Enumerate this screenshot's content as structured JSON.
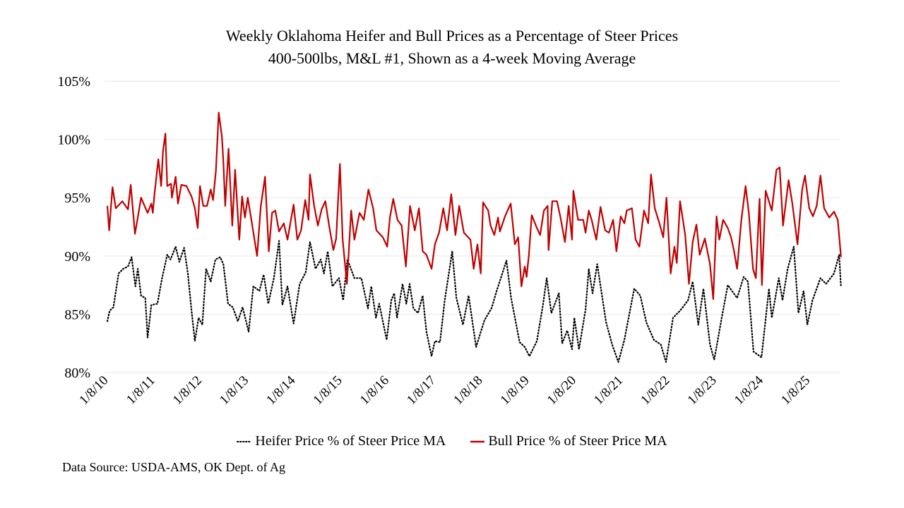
{
  "chart_data": {
    "type": "line",
    "title": "Weekly Oklahoma Heifer and Bull Prices as a Percentage of Steer Prices",
    "subtitle": "400-500lbs, M&L #1, Shown as a 4-week Moving Average",
    "xlabel": "",
    "ylabel": "",
    "ylim": [
      80,
      105
    ],
    "yticks": [
      "80%",
      "85%",
      "90%",
      "95%",
      "100%",
      "105%"
    ],
    "ytick_values": [
      80,
      85,
      90,
      95,
      100,
      105
    ],
    "xlim": [
      2010.0,
      2025.7
    ],
    "xticks": [
      "1/8/10",
      "1/8/11",
      "1/8/12",
      "1/8/13",
      "1/8/14",
      "1/8/15",
      "1/8/16",
      "1/8/17",
      "1/8/18",
      "1/8/19",
      "1/8/20",
      "1/8/21",
      "1/8/22",
      "1/8/23",
      "1/8/24",
      "1/8/25"
    ],
    "xtick_values": [
      2010.02,
      2011.02,
      2012.02,
      2013.02,
      2014.02,
      2015.02,
      2016.02,
      2017.02,
      2018.02,
      2019.02,
      2020.02,
      2021.02,
      2022.02,
      2023.02,
      2024.02,
      2025.02
    ],
    "grid": "horizontal",
    "legend_position": "bottom",
    "source": "Data Source: USDA-AMS, OK Dept. of Ag",
    "series": [
      {
        "name": "Heifer Price % of Steer Price MA",
        "color": "#000000",
        "style": "dotted",
        "x": [
          2010.02,
          2010.07,
          2010.15,
          2010.26,
          2010.36,
          2010.46,
          2010.54,
          2010.62,
          2010.67,
          2010.74,
          2010.83,
          2010.88,
          2010.96,
          2011.09,
          2011.19,
          2011.3,
          2011.37,
          2011.48,
          2011.56,
          2011.66,
          2011.74,
          2011.82,
          2011.89,
          2011.97,
          2012.05,
          2012.13,
          2012.23,
          2012.33,
          2012.43,
          2012.5,
          2012.6,
          2012.7,
          2012.81,
          2012.91,
          2013.04,
          2013.14,
          2013.27,
          2013.36,
          2013.46,
          2013.58,
          2013.69,
          2013.76,
          2013.87,
          2014.0,
          2014.13,
          2014.26,
          2014.35,
          2014.47,
          2014.58,
          2014.65,
          2014.73,
          2014.83,
          2014.97,
          2015.06,
          2015.15,
          2015.3,
          2015.45,
          2015.59,
          2015.66,
          2015.76,
          2015.83,
          2015.99,
          2016.09,
          2016.15,
          2016.21,
          2016.33,
          2016.41,
          2016.48,
          2016.56,
          2016.66,
          2016.76,
          2016.84,
          2016.95,
          2017.02,
          2017.13,
          2017.23,
          2017.39,
          2017.48,
          2017.62,
          2017.74,
          2017.9,
          2018.08,
          2018.23,
          2018.34,
          2018.55,
          2018.65,
          2018.83,
          2018.94,
          2019.04,
          2019.2,
          2019.33,
          2019.41,
          2019.51,
          2019.67,
          2019.74,
          2019.85,
          2019.95,
          2020.0,
          2020.1,
          2020.24,
          2020.31,
          2020.39,
          2020.49,
          2020.68,
          2020.81,
          2020.94,
          2021.07,
          2021.28,
          2021.41,
          2021.54,
          2021.7,
          2021.85,
          2021.96,
          2022.11,
          2022.26,
          2022.43,
          2022.53,
          2022.65,
          2022.76,
          2022.9,
          2022.99,
          2023.15,
          2023.28,
          2023.48,
          2023.62,
          2023.71,
          2023.83,
          2024.0,
          2024.16,
          2024.22,
          2024.37,
          2024.45,
          2024.56,
          2024.69,
          2024.79,
          2024.9,
          2024.98,
          2025.09,
          2025.26,
          2025.38,
          2025.55,
          2025.66,
          2025.7
        ],
        "values": [
          84.4,
          85.3,
          85.6,
          88.5,
          88.9,
          89.1,
          89.9,
          87.4,
          88.9,
          86.6,
          86.4,
          83.0,
          85.8,
          85.9,
          88.1,
          90.1,
          89.7,
          90.8,
          89.5,
          90.7,
          88.5,
          85.3,
          82.7,
          84.7,
          84.1,
          88.9,
          87.8,
          89.7,
          89.9,
          89.3,
          85.9,
          85.6,
          84.4,
          85.6,
          83.5,
          87.4,
          87.0,
          88.4,
          85.9,
          88.1,
          91.3,
          85.8,
          87.4,
          84.2,
          87.6,
          88.6,
          91.2,
          88.9,
          89.7,
          88.5,
          90.4,
          87.4,
          88.1,
          86.2,
          89.7,
          88.1,
          88.1,
          85.5,
          87.4,
          84.7,
          85.9,
          82.8,
          86.2,
          86.8,
          84.7,
          87.6,
          85.9,
          87.6,
          85.5,
          85.1,
          86.6,
          83.5,
          81.4,
          82.7,
          82.6,
          86.2,
          90.4,
          86.4,
          84.1,
          86.6,
          82.2,
          84.5,
          85.5,
          87.0,
          89.6,
          86.4,
          82.6,
          82.2,
          81.4,
          82.7,
          85.8,
          88.1,
          85.1,
          86.8,
          82.5,
          83.6,
          82.0,
          84.7,
          82.0,
          85.4,
          88.9,
          86.8,
          89.3,
          84.3,
          82.4,
          80.9,
          82.8,
          87.2,
          86.6,
          84.3,
          82.8,
          82.4,
          80.9,
          84.7,
          85.3,
          86.2,
          87.8,
          84.1,
          87.2,
          82.4,
          81.1,
          84.7,
          87.5,
          86.4,
          88.2,
          87.8,
          81.8,
          81.3,
          87.2,
          84.7,
          88.1,
          86.2,
          88.9,
          90.8,
          85.1,
          87.0,
          84.1,
          86.2,
          88.1,
          87.6,
          88.5,
          90.1,
          87.3
        ]
      },
      {
        "name": "Bull Price % of Steer Price MA",
        "color": "#c00000",
        "style": "solid",
        "x": [
          2010.02,
          2010.06,
          2010.13,
          2010.2,
          2010.34,
          2010.46,
          2010.52,
          2010.61,
          2010.67,
          2010.74,
          2010.88,
          2010.96,
          2010.99,
          2011.03,
          2011.11,
          2011.17,
          2011.21,
          2011.26,
          2011.3,
          2011.38,
          2011.4,
          2011.48,
          2011.53,
          2011.6,
          2011.71,
          2011.82,
          2011.89,
          2011.95,
          2012.0,
          2012.07,
          2012.15,
          2012.23,
          2012.28,
          2012.34,
          2012.4,
          2012.47,
          2012.5,
          2012.54,
          2012.61,
          2012.69,
          2012.75,
          2012.84,
          2012.9,
          2012.96,
          2013.02,
          2013.11,
          2013.22,
          2013.3,
          2013.39,
          2013.47,
          2013.54,
          2013.61,
          2013.69,
          2013.79,
          2013.87,
          2014.0,
          2014.08,
          2014.16,
          2014.25,
          2014.32,
          2014.35,
          2014.44,
          2014.52,
          2014.6,
          2014.68,
          2014.76,
          2014.85,
          2014.91,
          2014.99,
          2015.05,
          2015.14,
          2015.23,
          2015.3,
          2015.41,
          2015.5,
          2015.6,
          2015.7,
          2015.77,
          2015.91,
          2016.0,
          2016.06,
          2016.13,
          2016.22,
          2016.31,
          2016.4,
          2016.49,
          2016.59,
          2016.68,
          2016.76,
          2016.84,
          2016.95,
          2017.02,
          2017.11,
          2017.2,
          2017.28,
          2017.37,
          2017.46,
          2017.54,
          2017.64,
          2017.78,
          2017.85,
          2017.93,
          2018.0,
          2018.05,
          2018.16,
          2018.21,
          2018.29,
          2018.37,
          2018.41,
          2018.52,
          2018.64,
          2018.73,
          2018.8,
          2018.87,
          2018.94,
          2018.98,
          2019.03,
          2019.09,
          2019.2,
          2019.27,
          2019.35,
          2019.43,
          2019.45,
          2019.53,
          2019.63,
          2019.7,
          2019.8,
          2019.88,
          2019.95,
          2019.98,
          2020.08,
          2020.19,
          2020.24,
          2020.31,
          2020.37,
          2020.47,
          2020.56,
          2020.66,
          2020.74,
          2020.83,
          2020.9,
          2020.99,
          2021.07,
          2021.12,
          2021.23,
          2021.31,
          2021.39,
          2021.49,
          2021.58,
          2021.64,
          2021.72,
          2021.82,
          2021.9,
          2021.97,
          2022.06,
          2022.14,
          2022.19,
          2022.26,
          2022.37,
          2022.45,
          2022.53,
          2022.61,
          2022.68,
          2022.79,
          2022.9,
          2022.97,
          2023.04,
          2023.1,
          2023.18,
          2023.28,
          2023.35,
          2023.41,
          2023.48,
          2023.57,
          2023.66,
          2023.73,
          2023.82,
          2023.88,
          2023.96,
          2024.01,
          2024.09,
          2024.22,
          2024.32,
          2024.39,
          2024.46,
          2024.58,
          2024.66,
          2024.77,
          2024.87,
          2024.93,
          2025.02,
          2025.1,
          2025.18,
          2025.26,
          2025.34,
          2025.45,
          2025.55,
          2025.63,
          2025.7
        ],
        "values": [
          94.3,
          92.2,
          95.9,
          94.1,
          94.7,
          94.0,
          96.1,
          91.9,
          93.3,
          95.0,
          93.7,
          94.5,
          93.7,
          95.4,
          98.3,
          96.0,
          99.0,
          100.5,
          96.0,
          96.2,
          95.0,
          96.8,
          94.5,
          96.1,
          96.0,
          95.1,
          94.1,
          92.4,
          96.0,
          94.3,
          94.3,
          95.7,
          94.8,
          97.3,
          102.3,
          100.2,
          98.0,
          94.3,
          99.2,
          92.6,
          97.4,
          91.4,
          95.1,
          93.3,
          95.0,
          92.8,
          90.0,
          94.3,
          96.8,
          90.4,
          93.7,
          93.9,
          92.1,
          92.8,
          91.4,
          94.4,
          91.4,
          92.2,
          94.8,
          93.1,
          97.0,
          94.3,
          92.6,
          94.0,
          94.7,
          92.6,
          90.5,
          91.5,
          97.9,
          91.4,
          87.6,
          93.9,
          91.4,
          93.7,
          93.1,
          95.7,
          94.1,
          92.2,
          91.6,
          90.8,
          93.3,
          94.9,
          93.1,
          92.6,
          89.1,
          94.3,
          92.2,
          94.1,
          90.4,
          90.1,
          88.9,
          91.0,
          92.0,
          94.1,
          92.2,
          95.3,
          91.8,
          94.3,
          92.0,
          91.4,
          88.9,
          91.0,
          88.5,
          94.6,
          93.9,
          92.6,
          91.8,
          93.3,
          92.1,
          93.4,
          94.5,
          91.0,
          91.6,
          87.4,
          89.1,
          88.2,
          90.1,
          93.5,
          92.4,
          91.8,
          93.9,
          94.3,
          90.5,
          94.7,
          94.7,
          93.4,
          91.2,
          94.3,
          91.4,
          95.6,
          93.1,
          93.1,
          92.0,
          93.9,
          93.1,
          91.4,
          94.2,
          92.2,
          92.0,
          93.1,
          90.4,
          93.4,
          92.8,
          93.9,
          94.1,
          91.4,
          90.8,
          93.9,
          92.8,
          97.0,
          94.1,
          92.8,
          91.6,
          95.0,
          88.5,
          90.8,
          89.4,
          94.7,
          91.8,
          87.6,
          91.2,
          92.7,
          90.1,
          91.5,
          89.3,
          86.3,
          93.4,
          91.4,
          93.1,
          92.4,
          91.6,
          90.5,
          88.9,
          93.1,
          96.0,
          93.7,
          88.9,
          88.1,
          94.9,
          87.5,
          95.6,
          93.9,
          97.4,
          97.6,
          92.6,
          96.5,
          94.5,
          91.0,
          95.7,
          96.9,
          94.1,
          93.4,
          94.3,
          96.9,
          94.1,
          93.3,
          93.8,
          93.1,
          89.9
        ]
      }
    ]
  }
}
